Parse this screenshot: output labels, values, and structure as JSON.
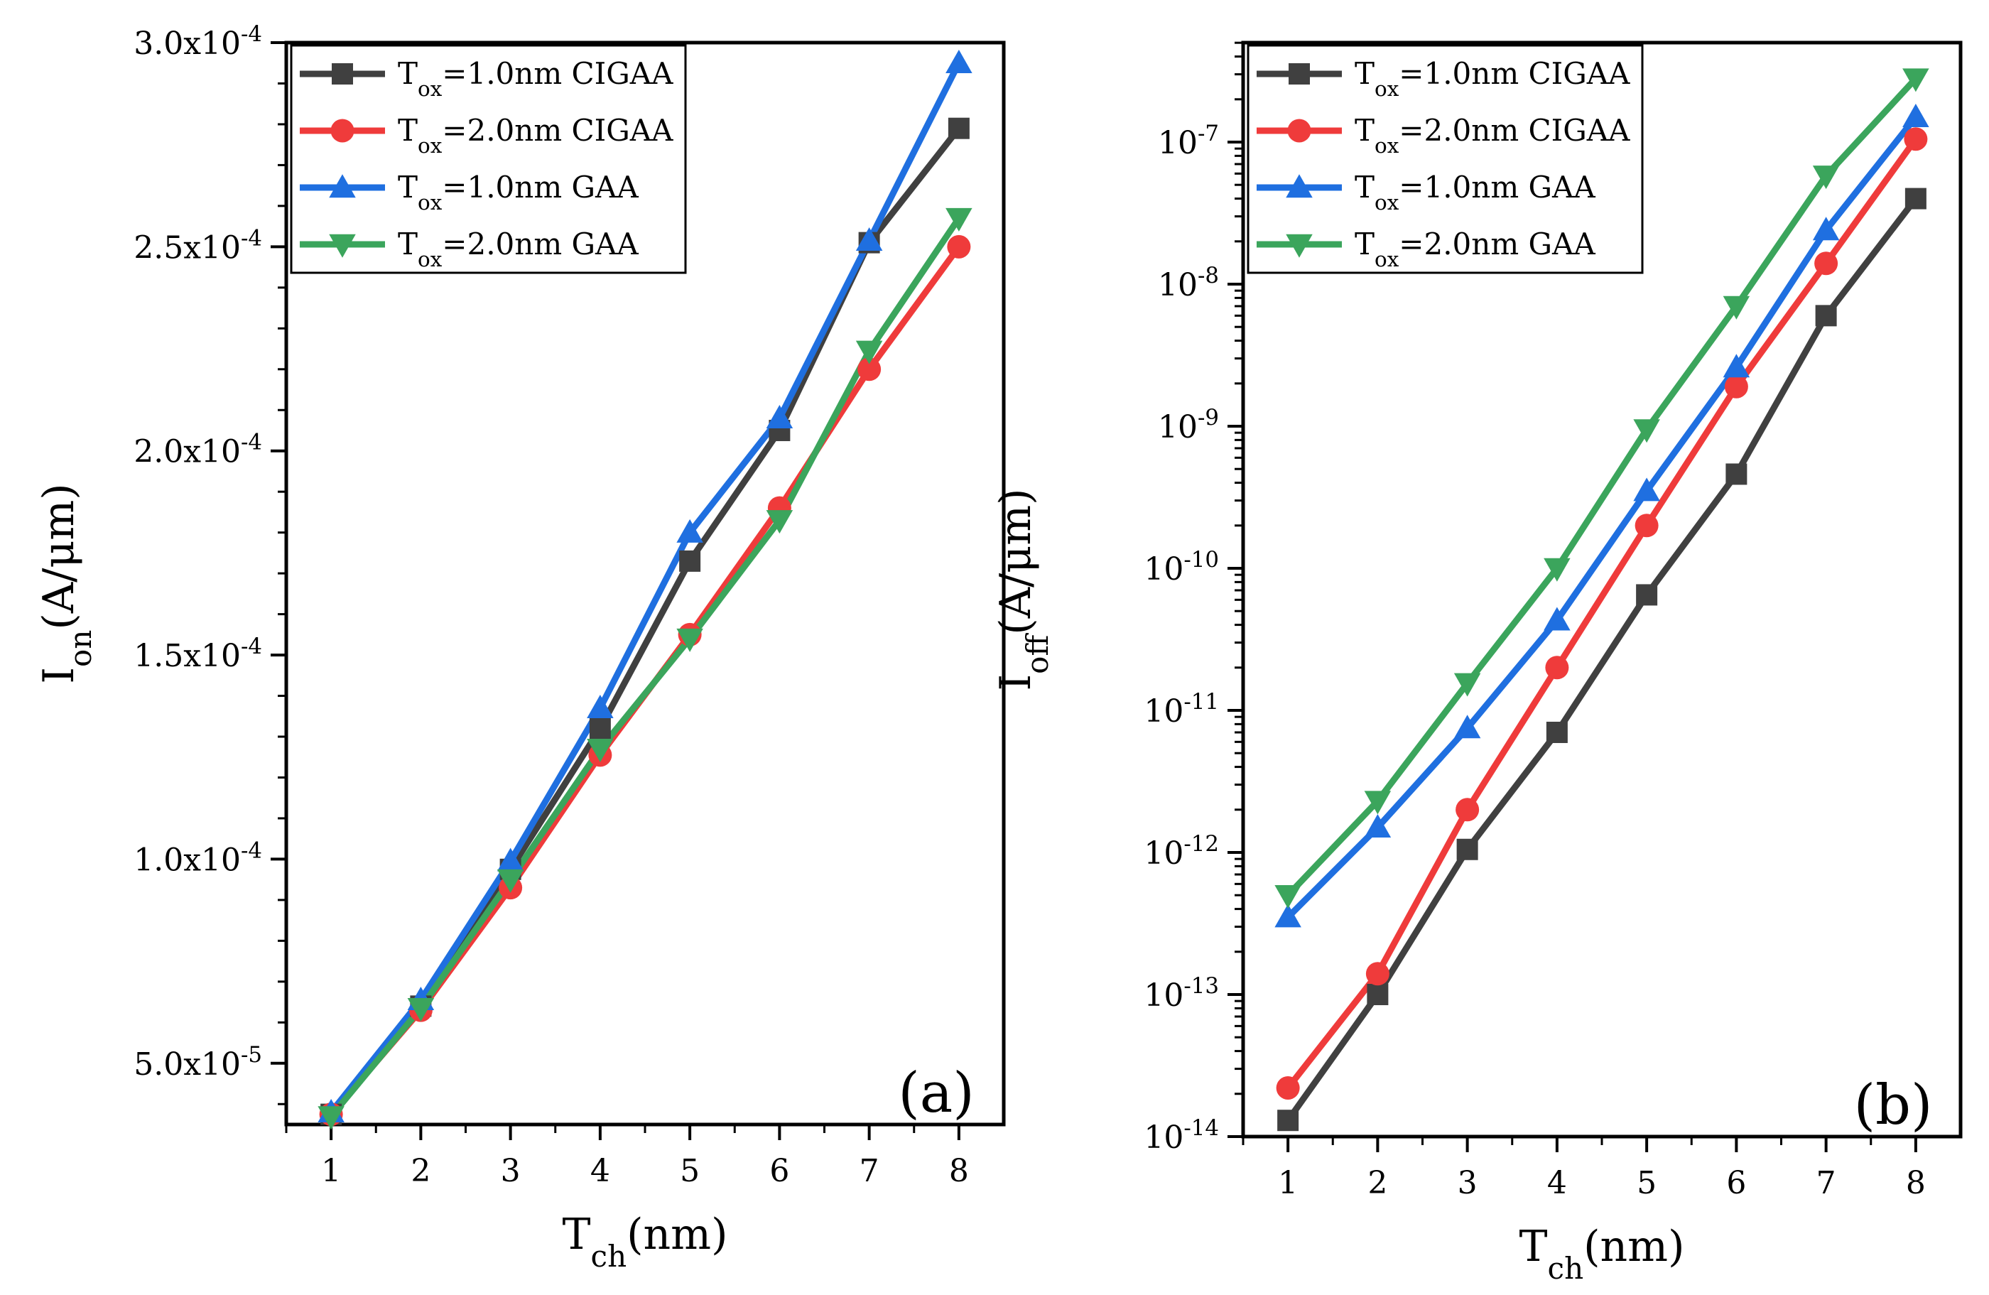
{
  "chart_data": [
    {
      "type": "line",
      "panel_label": "(a)",
      "xlabel": {
        "main": "T",
        "sub": "ch",
        "rest": "(nm)"
      },
      "ylabel": {
        "main": "I",
        "sub": "on",
        "rest": "(A/μm)"
      },
      "x": [
        1,
        2,
        3,
        4,
        5,
        6,
        7,
        8
      ],
      "xlim": [
        0.5,
        8.5
      ],
      "ylim": [
        3.5e-05,
        0.0003
      ],
      "yscale": "linear",
      "xticks": [
        "1",
        "2",
        "3",
        "4",
        "5",
        "6",
        "7",
        "8"
      ],
      "yticks": [
        {
          "value": 5e-05,
          "mantissa": "5.0x10",
          "exp": "-5"
        },
        {
          "value": 0.0001,
          "mantissa": "1.0x10",
          "exp": "-4"
        },
        {
          "value": 0.00015,
          "mantissa": "1.5x10",
          "exp": "-4"
        },
        {
          "value": 0.0002,
          "mantissa": "2.0x10",
          "exp": "-4"
        },
        {
          "value": 0.00025,
          "mantissa": "2.5x10",
          "exp": "-4"
        },
        {
          "value": 0.0003,
          "mantissa": "3.0x10",
          "exp": "-4"
        }
      ],
      "legend_position": "top-left",
      "series": [
        {
          "legend_main": "T",
          "legend_sub": "ox",
          "legend_rest": "=1.0nm CIGAA",
          "color": "#404040",
          "marker": "square",
          "values": [
            3.75e-05,
            6.4e-05,
            9.75e-05,
            0.000132,
            0.000173,
            0.000205,
            0.000251,
            0.000279
          ]
        },
        {
          "legend_main": "T",
          "legend_sub": "ox",
          "legend_rest": "=2.0nm CIGAA",
          "color": "#ef3b3b",
          "marker": "circle",
          "values": [
            3.75e-05,
            6.3e-05,
            9.3e-05,
            0.0001255,
            0.000155,
            0.000186,
            0.00022,
            0.00025
          ]
        },
        {
          "legend_main": "T",
          "legend_sub": "ox",
          "legend_rest": "=1.0nm GAA",
          "color": "#1f6fe0",
          "marker": "triangle-up",
          "values": [
            3.8e-05,
            6.55e-05,
            9.95e-05,
            0.000137,
            0.00018,
            0.000208,
            0.0002515,
            0.000295
          ]
        },
        {
          "legend_main": "T",
          "legend_sub": "ox",
          "legend_rest": "=2.0nm GAA",
          "color": "#3ba55c",
          "marker": "triangle-down",
          "values": [
            3.7e-05,
            6.35e-05,
            9.5e-05,
            0.000127,
            0.000154,
            0.000183,
            0.0002245,
            0.000257
          ]
        }
      ]
    },
    {
      "type": "line",
      "panel_label": "(b)",
      "xlabel": {
        "main": "T",
        "sub": "ch",
        "rest": "(nm)"
      },
      "ylabel": {
        "main": "I",
        "sub": "off",
        "rest": "(A/μm)"
      },
      "x": [
        1,
        2,
        3,
        4,
        5,
        6,
        7,
        8
      ],
      "xlim": [
        0.5,
        8.5
      ],
      "ylim_log10": [
        -14,
        -6.3
      ],
      "yscale": "log",
      "xticks": [
        "1",
        "2",
        "3",
        "4",
        "5",
        "6",
        "7",
        "8"
      ],
      "yticks": [
        {
          "value": 1e-14,
          "mantissa": "10",
          "exp": "-14"
        },
        {
          "value": 1e-13,
          "mantissa": "10",
          "exp": "-13"
        },
        {
          "value": 1e-12,
          "mantissa": "10",
          "exp": "-12"
        },
        {
          "value": 1e-11,
          "mantissa": "10",
          "exp": "-11"
        },
        {
          "value": 1e-10,
          "mantissa": "10",
          "exp": "-10"
        },
        {
          "value": 1e-09,
          "mantissa": "10",
          "exp": "-9"
        },
        {
          "value": 1e-08,
          "mantissa": "10",
          "exp": "-8"
        },
        {
          "value": 1e-07,
          "mantissa": "10",
          "exp": "-7"
        }
      ],
      "legend_position": "top-left",
      "series": [
        {
          "legend_main": "T",
          "legend_sub": "ox",
          "legend_rest": "=1.0nm CIGAA",
          "color": "#404040",
          "marker": "square",
          "values": [
            1.3e-14,
            1e-13,
            1.05e-12,
            7e-12,
            6.5e-11,
            4.6e-10,
            6e-09,
            4e-08
          ]
        },
        {
          "legend_main": "T",
          "legend_sub": "ox",
          "legend_rest": "=2.0nm CIGAA",
          "color": "#ef3b3b",
          "marker": "circle",
          "values": [
            2.2e-14,
            1.4e-13,
            2e-12,
            2e-11,
            2e-10,
            1.9e-09,
            1.4e-08,
            1.05e-07
          ]
        },
        {
          "legend_main": "T",
          "legend_sub": "ox",
          "legend_rest": "=1.0nm GAA",
          "color": "#1f6fe0",
          "marker": "triangle-up",
          "values": [
            3.5e-13,
            1.5e-12,
            7.5e-12,
            4.3e-11,
            3.5e-10,
            2.6e-09,
            2.4e-08,
            1.5e-07
          ]
        },
        {
          "legend_main": "T",
          "legend_sub": "ox",
          "legend_rest": "=2.0nm GAA",
          "color": "#3ba55c",
          "marker": "triangle-down",
          "values": [
            5e-13,
            2.3e-12,
            1.55e-11,
            1e-10,
            9.5e-10,
            7e-09,
            5.8e-08,
            2.8e-07
          ]
        }
      ]
    }
  ]
}
